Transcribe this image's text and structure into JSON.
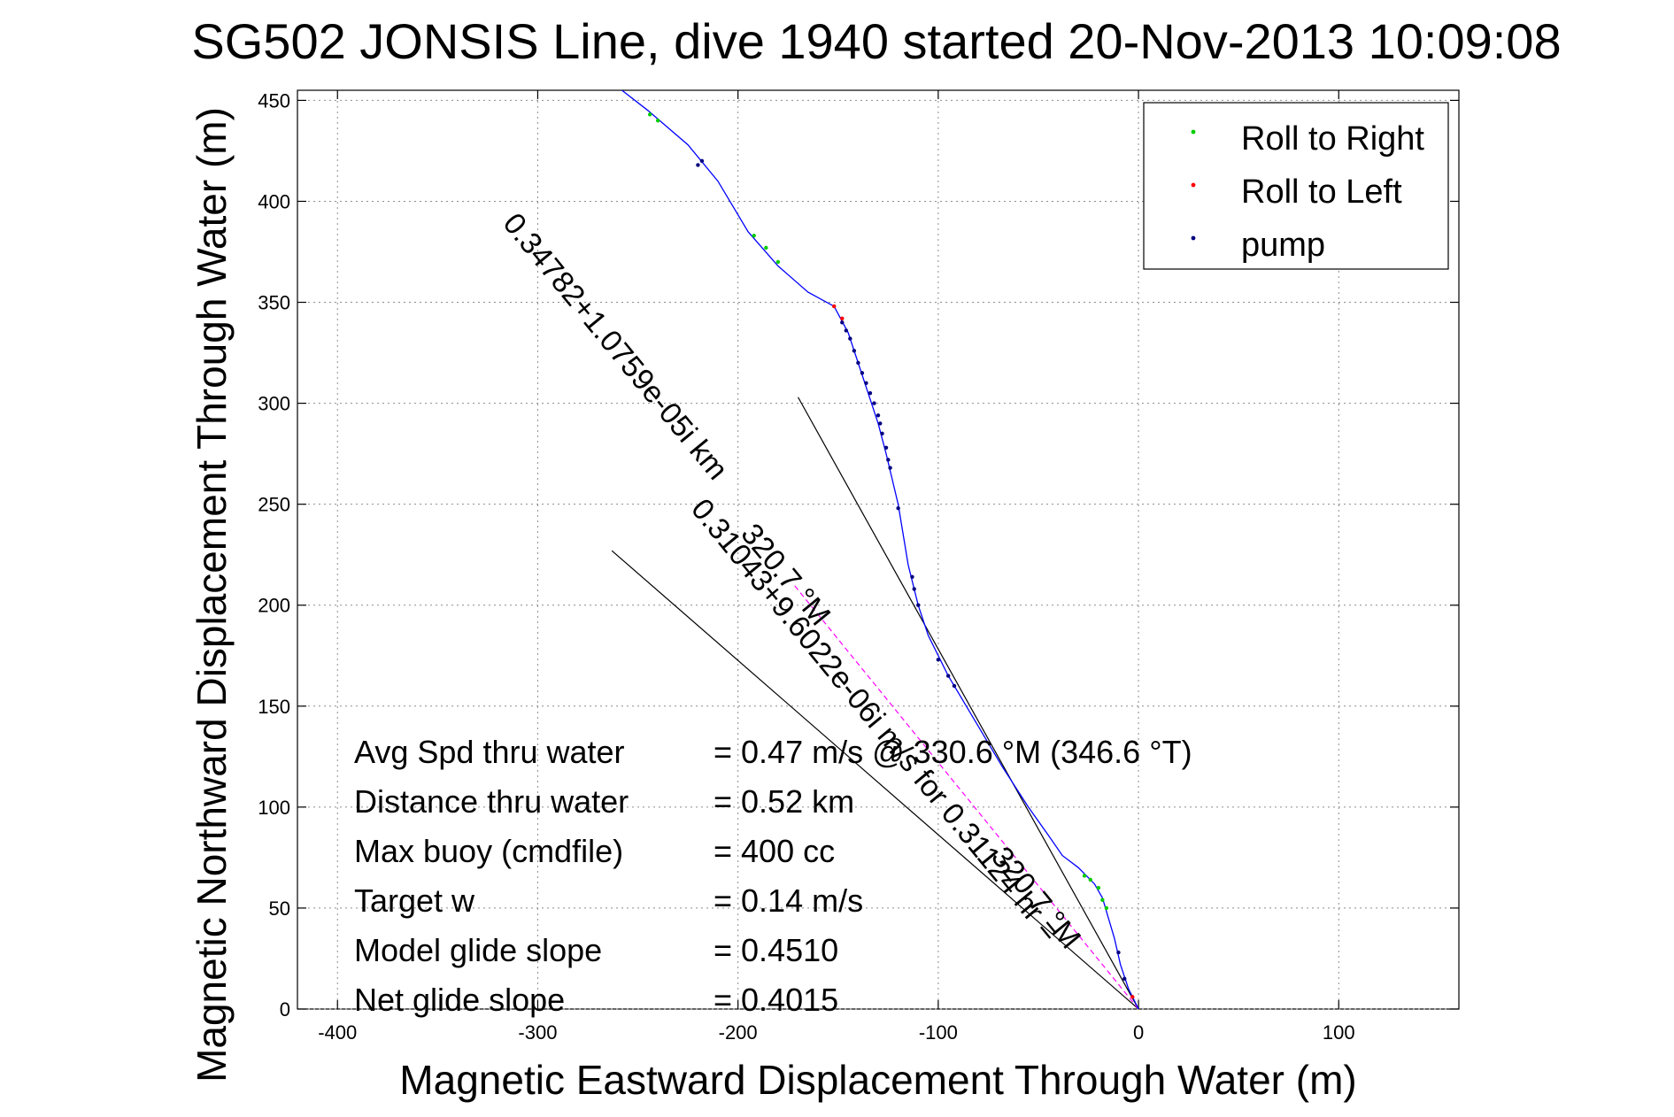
{
  "chart_data": {
    "type": "scatter",
    "title": "SG502 JONSIS Line, dive 1940 started 20-Nov-2013 10:09:08",
    "xlabel": "Magnetic Eastward Displacement Through Water (m)",
    "ylabel": "Magnetic Northward Displacement Through Water (m)",
    "xlim": [
      -420,
      160
    ],
    "ylim": [
      0,
      455
    ],
    "xticks": [
      "-400",
      "-300",
      "-200",
      "-100",
      "0",
      "100"
    ],
    "yticks": [
      "0",
      "50",
      "100",
      "150",
      "200",
      "250",
      "300",
      "350",
      "400",
      "450"
    ],
    "grid": true,
    "legend_position": "top-right",
    "legend": [
      {
        "label": "Roll to Right",
        "color": "#00cc00"
      },
      {
        "label": "Roll to Left",
        "color": "#ff0000"
      },
      {
        "label": "pump",
        "color": "#000080"
      }
    ],
    "track": {
      "color": "#0000ff",
      "points": [
        [
          0,
          0
        ],
        [
          -5,
          10
        ],
        [
          -9,
          22
        ],
        [
          -12,
          35
        ],
        [
          -15,
          45
        ],
        [
          -18,
          55
        ],
        [
          -22,
          62
        ],
        [
          -30,
          70
        ],
        [
          -38,
          76
        ],
        [
          -45,
          86
        ],
        [
          -55,
          100
        ],
        [
          -68,
          120
        ],
        [
          -80,
          140
        ],
        [
          -95,
          165
        ],
        [
          -105,
          185
        ],
        [
          -110,
          200
        ],
        [
          -115,
          220
        ],
        [
          -120,
          250
        ],
        [
          -126,
          275
        ],
        [
          -130,
          290
        ],
        [
          -135,
          305
        ],
        [
          -140,
          320
        ],
        [
          -145,
          335
        ],
        [
          -152,
          348
        ],
        [
          -165,
          355
        ],
        [
          -180,
          368
        ],
        [
          -195,
          385
        ],
        [
          -210,
          410
        ],
        [
          -225,
          428
        ],
        [
          -245,
          445
        ],
        [
          -258,
          455
        ]
      ]
    },
    "roll_right_points": [
      [
        -20,
        60
      ],
      [
        -24,
        64
      ],
      [
        -27,
        66
      ],
      [
        -16,
        50
      ],
      [
        -18,
        54
      ],
      [
        -192,
        383
      ],
      [
        -186,
        377
      ],
      [
        -180,
        370
      ],
      [
        -244,
        443
      ],
      [
        -240,
        440
      ]
    ],
    "roll_left_points": [
      [
        -3,
        6
      ],
      [
        -152,
        348
      ],
      [
        -148,
        342
      ]
    ],
    "pump_points": [
      [
        -7,
        15
      ],
      [
        -10,
        28
      ],
      [
        -92,
        160
      ],
      [
        -95,
        165
      ],
      [
        -100,
        173
      ],
      [
        -110,
        200
      ],
      [
        -112,
        208
      ],
      [
        -113,
        214
      ],
      [
        -120,
        248
      ],
      [
        -124,
        268
      ],
      [
        -125,
        272
      ],
      [
        -126,
        278
      ],
      [
        -128,
        285
      ],
      [
        -129,
        290
      ],
      [
        -130,
        294
      ],
      [
        -132,
        300
      ],
      [
        -134,
        305
      ],
      [
        -136,
        310
      ],
      [
        -138,
        315
      ],
      [
        -140,
        320
      ],
      [
        -142,
        326
      ],
      [
        -144,
        332
      ],
      [
        -146,
        336
      ],
      [
        -148,
        340
      ],
      [
        -220,
        418
      ],
      [
        -218,
        420
      ]
    ],
    "reference_lines": [
      {
        "from": [
          0,
          0
        ],
        "to": [
          -170,
          303
        ],
        "color": "#000000"
      },
      {
        "from": [
          0,
          0
        ],
        "to": [
          -263,
          227
        ],
        "color": "#000000"
      }
    ],
    "dashed_line": {
      "from": [
        0,
        0
      ],
      "to": [
        -172,
        210
      ],
      "color": "#ff00ff"
    },
    "rotated_annotations": [
      {
        "text": "0.34782+1.0759e-05i km",
        "x": -265,
        "y": 325,
        "angle": 50.6
      },
      {
        "text": "320.7 °M",
        "x": -180,
        "y": 212,
        "angle": 50.6
      },
      {
        "text": "0.31043+9.6022e-06i m/s for 0.31124 hr =",
        "x": -135,
        "y": 140,
        "angle": 50.6
      },
      {
        "text": "320.7 °M",
        "x": -55,
        "y": 52,
        "angle": 50.6
      }
    ],
    "stats": [
      {
        "label": "Avg Spd thru water",
        "value": "=  0.47 m/s @ 330.6 °M (346.6 °T)"
      },
      {
        "label": "Distance thru water",
        "value": "=  0.52 km"
      },
      {
        "label": "Max buoy (cmdfile)",
        "value": "= 400 cc"
      },
      {
        "label": "Target w",
        "value": "= 0.14 m/s"
      },
      {
        "label": "Model glide slope",
        "value": "= 0.4510"
      },
      {
        "label": "Net glide slope",
        "value": "= 0.4015"
      }
    ]
  }
}
